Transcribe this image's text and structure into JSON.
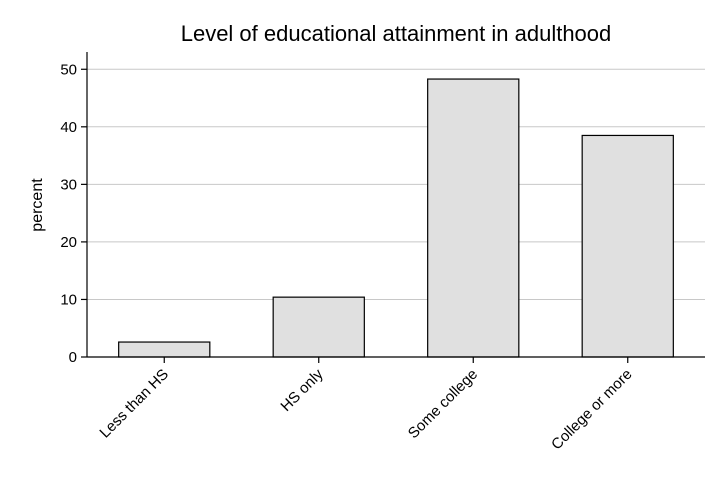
{
  "chart_data": {
    "type": "bar",
    "title": "Level of educational attainment in adulthood",
    "xlabel": "",
    "ylabel": "percent",
    "categories": [
      "Less than HS",
      "HS only",
      "Some college",
      "College or more"
    ],
    "values": [
      2.6,
      10.4,
      48.3,
      38.5
    ],
    "ylim": [
      0,
      53
    ],
    "yticks": [
      0,
      10,
      20,
      30,
      40,
      50
    ],
    "grid": true,
    "bar_color": "#e0e0e0",
    "edge_color": "#000000"
  }
}
